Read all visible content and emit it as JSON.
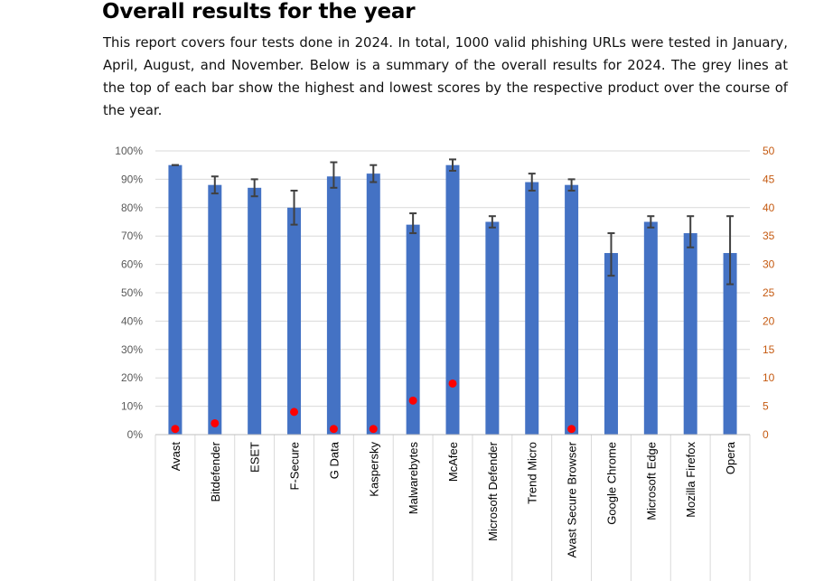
{
  "report": {
    "heading": "Overall results for the year",
    "intro": "This report covers four tests done in 2024. In total, 1000 valid phishing URLs were tested in January, April, August, and November. Below is a summary of the overall results for 2024. The grey lines at the top of each bar show the highest and lowest scores by the respective product over the course of the year."
  },
  "chart_data": {
    "type": "bar",
    "categories": [
      "Avast",
      "Bitdefender",
      "ESET",
      "F-Secure",
      "G Data",
      "Kaspersky",
      "Malwarebytes",
      "McAfee",
      "Microsoft Defender",
      "Trend Micro",
      "Avast Secure Browser",
      "Google Chrome",
      "Microsoft Edge",
      "Mozilla Firefox",
      "Opera"
    ],
    "series": [
      {
        "type": "bar",
        "axis": "left",
        "color": "#4472c4",
        "values": [
          95,
          88,
          87,
          80,
          91,
          92,
          74,
          95,
          75,
          89,
          88,
          64,
          75,
          71,
          64
        ],
        "error_high": [
          95,
          91,
          90,
          86,
          96,
          95,
          78,
          97,
          77,
          92,
          90,
          71,
          77,
          77,
          77
        ],
        "error_low": [
          95,
          85,
          84,
          74,
          87,
          89,
          71,
          93,
          73,
          86,
          86,
          56,
          73,
          66,
          53
        ]
      },
      {
        "type": "scatter",
        "axis": "right",
        "color": "#ff0000",
        "values": [
          1,
          2,
          null,
          4,
          1,
          1,
          6,
          9,
          null,
          null,
          1,
          null,
          null,
          null,
          null
        ]
      }
    ],
    "ylim": [
      0,
      100
    ],
    "yticks": [
      "0%",
      "10%",
      "20%",
      "30%",
      "40%",
      "50%",
      "60%",
      "70%",
      "80%",
      "90%",
      "100%"
    ],
    "y2lim": [
      0,
      50
    ],
    "y2ticks": [
      "0",
      "5",
      "10",
      "15",
      "20",
      "25",
      "30",
      "35",
      "40",
      "45",
      "50"
    ],
    "error_bar_color": "#404040",
    "grid": true
  }
}
